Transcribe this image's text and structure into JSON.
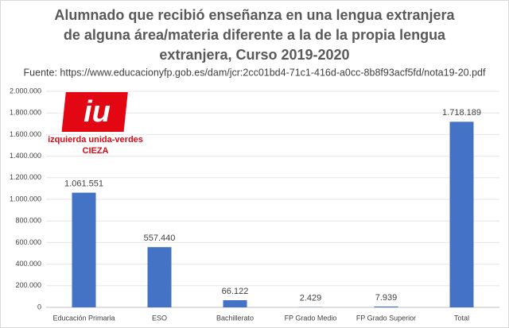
{
  "chart_data": {
    "type": "bar",
    "title": [
      "Alumnado que recibió enseñanza en una lengua extranjera",
      "de alguna área/materia diferente a la de la propia lengua",
      "extranjera, Curso 2019-2020"
    ],
    "subtitle": "Fuente: https://www.educacionyfp.gob.es/dam/jcr:2cc01bd4-71c1-416d-a0cc-8b8f93acf5fd/nota19-20.pdf",
    "categories": [
      "Educación Primaria",
      "ESO",
      "Bachillerato",
      "FP Grado Medio",
      "FP Grado Superior",
      "Total"
    ],
    "values": [
      1061551,
      557440,
      66122,
      2429,
      7939,
      1718189
    ],
    "value_labels": [
      "1.061.551",
      "557.440",
      "66.122",
      "2.429",
      "7.939",
      "1.718.189"
    ],
    "color": "#4472c4",
    "ylim": [
      0,
      2000000
    ],
    "yticks": [
      0,
      {
        "value": 200000,
        "label": "200.000"
      },
      {
        "value": 400000,
        "label": "400.000"
      },
      {
        "value": 600000,
        "label": "600.000"
      },
      {
        "value": 800000,
        "label": "800.000"
      },
      {
        "value": 1000000,
        "label": "1.000.000"
      },
      {
        "value": 1200000,
        "label": "1.200.000"
      },
      {
        "value": 1400000,
        "label": "1.400.000"
      },
      {
        "value": 1600000,
        "label": "1.600.000"
      },
      {
        "value": 1800000,
        "label": "1.800.000"
      },
      {
        "value": 2000000,
        "label": "2.000.000"
      }
    ],
    "grid": true
  },
  "logo": {
    "mark": "iu",
    "text": "izquierda unida-verdes",
    "subtext": "CIEZA"
  }
}
